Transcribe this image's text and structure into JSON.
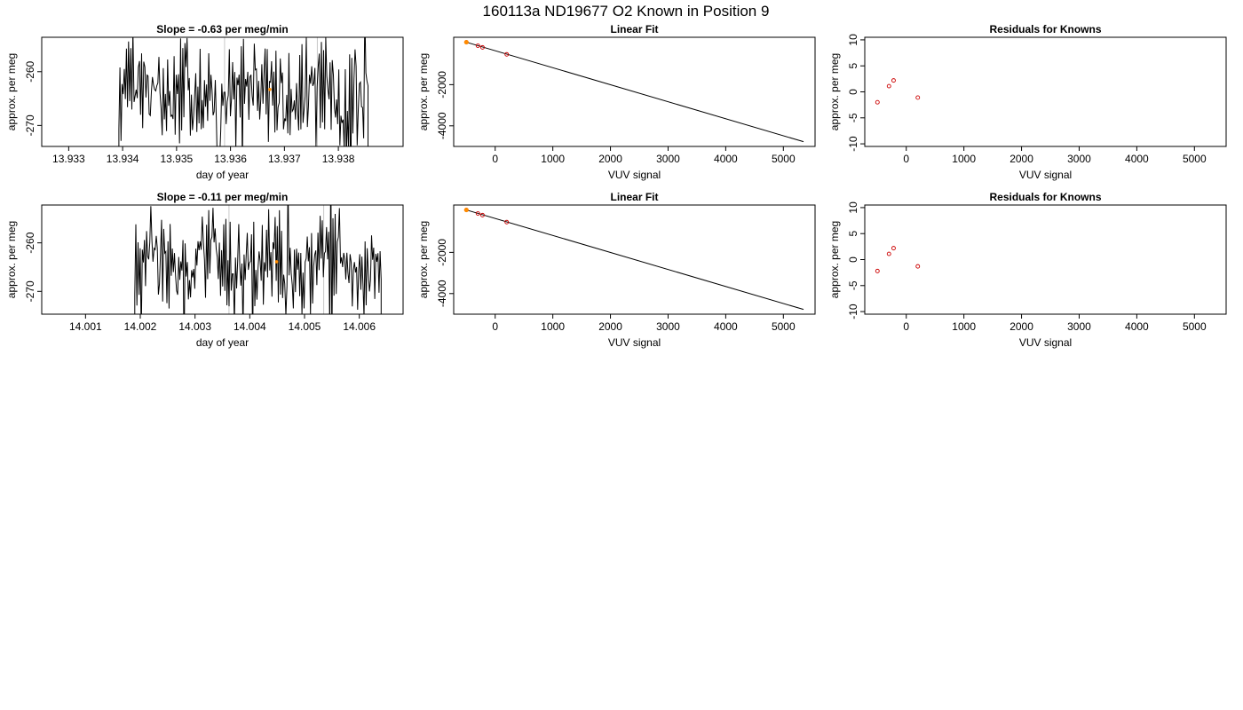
{
  "figure_title": "160113a     ND19677   O2 Known in Position  9",
  "colors": {
    "trace": "#000000",
    "marker_vline": "#c8c8c8",
    "point_fill": "#ff8c00",
    "residual_point": "#cc0000",
    "axis": "#000000"
  },
  "chart_data": [
    {
      "type": "line",
      "title": "Slope =  -0.63  per meg/min",
      "xlabel": "day of year",
      "ylabel": "approx. per meg",
      "xlim": [
        13.9325,
        13.9392
      ],
      "ylim": [
        -273.9,
        -253.6
      ],
      "xticks": [
        13.933,
        13.934,
        13.935,
        13.936,
        13.937,
        13.938
      ],
      "xtick_labels": [
        "13.933",
        "13.934",
        "13.935",
        "13.936",
        "13.937",
        "13.938"
      ],
      "yticks": [
        -270,
        -260
      ],
      "ytick_labels": [
        "-270",
        "-260"
      ],
      "x_start": 13.93393,
      "x_end": 13.93855,
      "seed": 7,
      "vlines": [
        13.93589,
        13.93761
      ],
      "highlight": {
        "x": 13.93673,
        "y": -263.3
      }
    },
    {
      "type": "scatter",
      "title": "Linear Fit",
      "xlabel": "VUV signal",
      "ylabel": "approx. per meg",
      "xlim": [
        -720,
        5550
      ],
      "ylim": [
        -5000,
        300
      ],
      "xticks": [
        0,
        1000,
        2000,
        3000,
        4000,
        5000
      ],
      "xtick_labels": [
        "0",
        "1000",
        "2000",
        "3000",
        "4000",
        "5000"
      ],
      "yticks": [
        -4000,
        -2000
      ],
      "ytick_labels": [
        "-4000",
        "-2000"
      ],
      "fit_line": {
        "x": [
          -500,
          5350
        ],
        "y": [
          60,
          -4770
        ]
      },
      "points": [
        {
          "x": -500,
          "y": 60
        },
        {
          "x": -300,
          "y": -110
        },
        {
          "x": -220,
          "y": -190
        },
        {
          "x": 200,
          "y": -530
        }
      ],
      "highlight": {
        "x": -500,
        "y": 60
      }
    },
    {
      "type": "scatter",
      "title": "Residuals for Knowns",
      "xlabel": "VUV signal",
      "ylabel": "approx. per meg",
      "xlim": [
        -720,
        5550
      ],
      "ylim": [
        -10.5,
        10.5
      ],
      "xticks": [
        0,
        1000,
        2000,
        3000,
        4000,
        5000
      ],
      "xtick_labels": [
        "0",
        "1000",
        "2000",
        "3000",
        "4000",
        "5000"
      ],
      "yticks": [
        -10,
        -5,
        0,
        5,
        10
      ],
      "ytick_labels": [
        "-10",
        "-5",
        "0",
        "5",
        "10"
      ],
      "points": [
        {
          "x": -500,
          "y": -2.0
        },
        {
          "x": -300,
          "y": 1.1
        },
        {
          "x": -220,
          "y": 2.2
        },
        {
          "x": 200,
          "y": -1.1
        }
      ]
    },
    {
      "type": "line",
      "title": "Slope =  -0.11  per meg/min",
      "xlabel": "day of year",
      "ylabel": "approx. per meg",
      "xlim": [
        14.0002,
        14.0068
      ],
      "ylim": [
        -274.7,
        -252.2
      ],
      "xticks": [
        14.001,
        14.002,
        14.003,
        14.004,
        14.005,
        14.006
      ],
      "xtick_labels": [
        "14.001",
        "14.002",
        "14.003",
        "14.004",
        "14.005",
        "14.006"
      ],
      "yticks": [
        -270,
        -260
      ],
      "ytick_labels": [
        "-270",
        "-260"
      ],
      "x_start": 14.0019,
      "x_end": 14.0064,
      "seed": 19,
      "vlines": [
        14.00362,
        14.00535
      ],
      "highlight": {
        "x": 14.00449,
        "y": -263.9
      }
    },
    {
      "type": "scatter",
      "title": "Linear Fit",
      "xlabel": "VUV signal",
      "ylabel": "approx. per meg",
      "xlim": [
        -720,
        5550
      ],
      "ylim": [
        -5000,
        300
      ],
      "xticks": [
        0,
        1000,
        2000,
        3000,
        4000,
        5000
      ],
      "xtick_labels": [
        "0",
        "1000",
        "2000",
        "3000",
        "4000",
        "5000"
      ],
      "yticks": [
        -4000,
        -2000
      ],
      "ytick_labels": [
        "-4000",
        "-2000"
      ],
      "fit_line": {
        "x": [
          -500,
          5350
        ],
        "y": [
          60,
          -4770
        ]
      },
      "points": [
        {
          "x": -500,
          "y": 60
        },
        {
          "x": -300,
          "y": -110
        },
        {
          "x": -220,
          "y": -190
        },
        {
          "x": 200,
          "y": -530
        }
      ],
      "highlight": {
        "x": -500,
        "y": 60
      }
    },
    {
      "type": "scatter",
      "title": "Residuals for Knowns",
      "xlabel": "VUV signal",
      "ylabel": "approx. per meg",
      "xlim": [
        -720,
        5550
      ],
      "ylim": [
        -10.5,
        10.5
      ],
      "xticks": [
        0,
        1000,
        2000,
        3000,
        4000,
        5000
      ],
      "xtick_labels": [
        "0",
        "1000",
        "2000",
        "3000",
        "4000",
        "5000"
      ],
      "yticks": [
        -10,
        -5,
        0,
        5,
        10
      ],
      "ytick_labels": [
        "-10",
        "-5",
        "0",
        "5",
        "10"
      ],
      "points": [
        {
          "x": -500,
          "y": -2.2
        },
        {
          "x": -300,
          "y": 1.1
        },
        {
          "x": -220,
          "y": 2.2
        },
        {
          "x": 200,
          "y": -1.3
        }
      ]
    }
  ]
}
